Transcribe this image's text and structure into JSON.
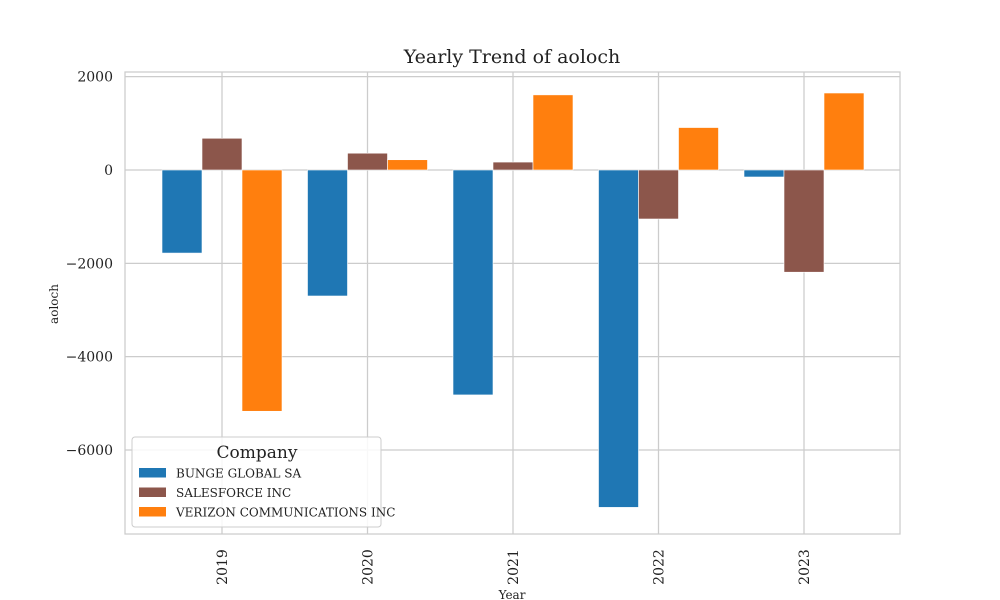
{
  "chart_data": {
    "type": "bar",
    "title": "Yearly Trend of aoloch",
    "xlabel": "Year",
    "ylabel": "aoloch",
    "categories": [
      "2019",
      "2020",
      "2021",
      "2022",
      "2023"
    ],
    "ylim": [
      -7800,
      2100
    ],
    "yticks": [
      2000,
      0,
      -2000,
      -4000,
      -6000
    ],
    "ytick_labels": [
      "2000",
      "0",
      "−2000",
      "−4000",
      "−6000"
    ],
    "grid": true,
    "legend": {
      "title": "Company",
      "placement": "lower-left"
    },
    "series": [
      {
        "name": "BUNGE GLOBAL SA",
        "color": "#1f77b4",
        "values": [
          -1780,
          -2700,
          -4820,
          -7230,
          -150
        ]
      },
      {
        "name": "SALESFORCE INC",
        "color": "#8c564b",
        "values": [
          680,
          360,
          170,
          -1050,
          -2190
        ]
      },
      {
        "name": "VERIZON COMMUNICATIONS INC",
        "color": "#ff7f0e",
        "values": [
          -5170,
          220,
          1610,
          910,
          1650
        ]
      }
    ]
  }
}
